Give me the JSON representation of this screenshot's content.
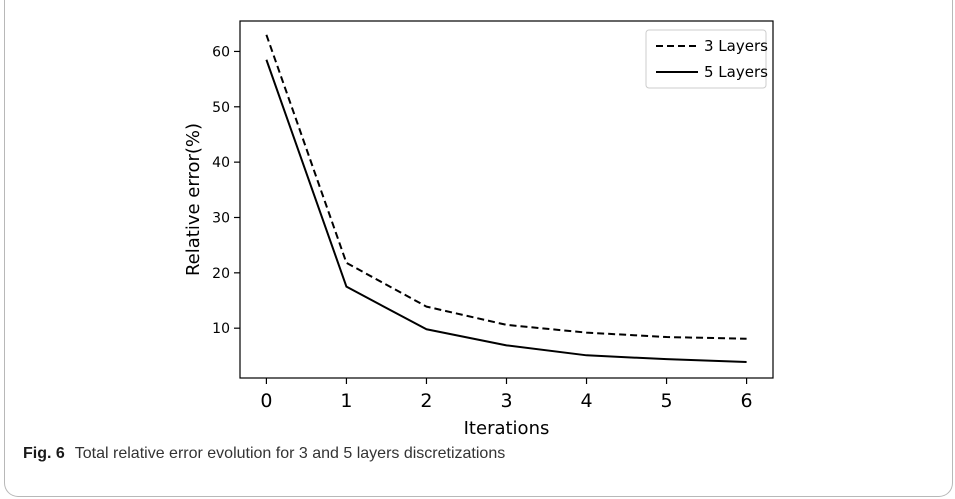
{
  "chart_data": {
    "type": "line",
    "x": [
      0,
      1,
      2,
      3,
      4,
      5,
      6
    ],
    "series": [
      {
        "name": "3 Layers",
        "style": "dashed",
        "color": "#000000",
        "values": [
          63.0,
          21.8,
          13.9,
          10.6,
          9.2,
          8.4,
          8.1
        ]
      },
      {
        "name": "5 Layers",
        "style": "solid",
        "color": "#000000",
        "values": [
          58.5,
          17.5,
          9.8,
          6.9,
          5.1,
          4.4,
          3.9
        ]
      }
    ],
    "xlabel": "Iterations",
    "ylabel": "Relative error(%)",
    "xlim": [
      -0.33,
      6.33
    ],
    "ylim": [
      1.0,
      65.5
    ],
    "xticks": [
      0,
      1,
      2,
      3,
      4,
      5,
      6
    ],
    "yticks": [
      10,
      20,
      30,
      40,
      50,
      60
    ],
    "grid": false,
    "legend_position": "top-right"
  },
  "caption": {
    "label": "Fig. 6",
    "text": "Total relative error evolution for 3 and 5 layers discretizations"
  }
}
